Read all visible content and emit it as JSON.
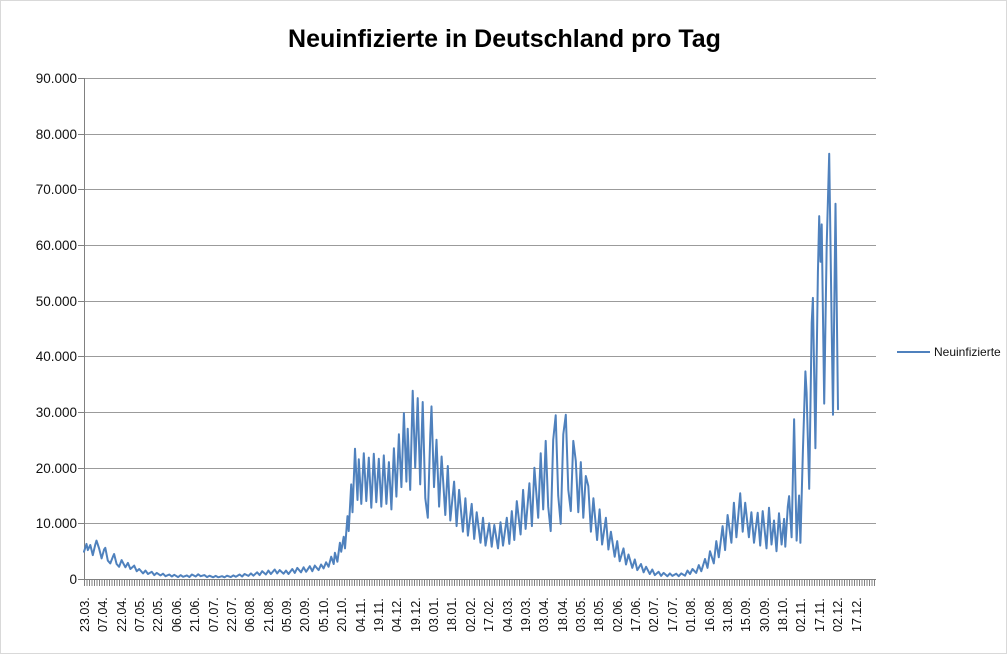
{
  "title": "Neuinfizierte in Deutschland pro Tag",
  "legend": {
    "label": "Neuinfizierte"
  },
  "colors": {
    "series_line": "#4F81BD",
    "gridline": "#9b9b9b",
    "axis_line": "#808080",
    "text": "#111111",
    "background": "#ffffff"
  },
  "chart_data": {
    "type": "line",
    "title": "Neuinfizierte in Deutschland pro Tag",
    "xlabel": "",
    "ylabel": "",
    "ylim": [
      0,
      90000
    ],
    "grid": "horizontal",
    "legend_position": "right",
    "x_unit": "days since 23.03.2020 (category axis)",
    "y_tick_labels": [
      "90.000",
      "80.000",
      "70.000",
      "60.000",
      "50.000",
      "40.000",
      "30.000",
      "20.000",
      "10.000",
      "0"
    ],
    "y_tick_values": [
      90000,
      80000,
      70000,
      60000,
      50000,
      40000,
      30000,
      20000,
      10000,
      0
    ],
    "x_tick_labels": [
      "23.03.",
      "07.04.",
      "22.04.",
      "07.05.",
      "22.05.",
      "06.06.",
      "21.06.",
      "07.07.",
      "22.07.",
      "06.08.",
      "21.08.",
      "05.09.",
      "20.09.",
      "05.10.",
      "20.10.",
      "04.11.",
      "19.11.",
      "04.12.",
      "19.12.",
      "03.01.",
      "18.01.",
      "02.02.",
      "17.02.",
      "04.03.",
      "19.03.",
      "03.04.",
      "18.04.",
      "03.05.",
      "18.05.",
      "02.06.",
      "17.06.",
      "02.07.",
      "17.07.",
      "01.08.",
      "16.08.",
      "31.08.",
      "15.09.",
      "30.09.",
      "18.10.",
      "02.11.",
      "17.11.",
      "02.12.",
      "17.12."
    ],
    "x_tick_step_days": 15,
    "x_domain_days": [
      0,
      646
    ],
    "series": [
      {
        "name": "Neuinfizierte",
        "color": "#4F81BD",
        "points": [
          [
            0,
            4900
          ],
          [
            2,
            6300
          ],
          [
            3,
            5200
          ],
          [
            5,
            6100
          ],
          [
            7,
            4300
          ],
          [
            9,
            6200
          ],
          [
            10,
            6900
          ],
          [
            12,
            5500
          ],
          [
            14,
            3700
          ],
          [
            16,
            5300
          ],
          [
            17,
            5600
          ],
          [
            19,
            3300
          ],
          [
            21,
            2800
          ],
          [
            23,
            4000
          ],
          [
            24,
            4500
          ],
          [
            26,
            2700
          ],
          [
            28,
            2200
          ],
          [
            30,
            3400
          ],
          [
            33,
            2100
          ],
          [
            35,
            2900
          ],
          [
            37,
            1800
          ],
          [
            40,
            2400
          ],
          [
            42,
            1400
          ],
          [
            44,
            1800
          ],
          [
            47,
            1000
          ],
          [
            49,
            1500
          ],
          [
            51,
            900
          ],
          [
            54,
            1300
          ],
          [
            56,
            700
          ],
          [
            58,
            1100
          ],
          [
            61,
            650
          ],
          [
            63,
            950
          ],
          [
            65,
            500
          ],
          [
            68,
            800
          ],
          [
            70,
            450
          ],
          [
            72,
            750
          ],
          [
            75,
            350
          ],
          [
            77,
            700
          ],
          [
            79,
            400
          ],
          [
            82,
            650
          ],
          [
            84,
            350
          ],
          [
            86,
            800
          ],
          [
            89,
            450
          ],
          [
            91,
            850
          ],
          [
            93,
            500
          ],
          [
            96,
            700
          ],
          [
            98,
            350
          ],
          [
            100,
            600
          ],
          [
            103,
            300
          ],
          [
            105,
            550
          ],
          [
            107,
            300
          ],
          [
            110,
            500
          ],
          [
            112,
            300
          ],
          [
            114,
            600
          ],
          [
            117,
            350
          ],
          [
            119,
            650
          ],
          [
            121,
            400
          ],
          [
            124,
            800
          ],
          [
            126,
            450
          ],
          [
            128,
            900
          ],
          [
            131,
            550
          ],
          [
            133,
            1000
          ],
          [
            135,
            600
          ],
          [
            138,
            1200
          ],
          [
            140,
            700
          ],
          [
            142,
            1400
          ],
          [
            145,
            800
          ],
          [
            147,
            1500
          ],
          [
            149,
            900
          ],
          [
            152,
            1700
          ],
          [
            154,
            1000
          ],
          [
            156,
            1600
          ],
          [
            159,
            950
          ],
          [
            161,
            1500
          ],
          [
            163,
            900
          ],
          [
            166,
            1800
          ],
          [
            168,
            1100
          ],
          [
            170,
            2000
          ],
          [
            173,
            1200
          ],
          [
            175,
            2100
          ],
          [
            177,
            1300
          ],
          [
            180,
            2300
          ],
          [
            182,
            1400
          ],
          [
            184,
            2400
          ],
          [
            187,
            1600
          ],
          [
            189,
            2600
          ],
          [
            191,
            1900
          ],
          [
            193,
            3000
          ],
          [
            195,
            2200
          ],
          [
            197,
            4000
          ],
          [
            199,
            2700
          ],
          [
            200,
            4700
          ],
          [
            202,
            3100
          ],
          [
            204,
            6500
          ],
          [
            205,
            4900
          ],
          [
            207,
            7600
          ],
          [
            208,
            5500
          ],
          [
            210,
            11300
          ],
          [
            211,
            8600
          ],
          [
            213,
            17000
          ],
          [
            214,
            12000
          ],
          [
            216,
            23400
          ],
          [
            218,
            14200
          ],
          [
            219,
            21500
          ],
          [
            221,
            13500
          ],
          [
            223,
            22600
          ],
          [
            225,
            14000
          ],
          [
            227,
            21800
          ],
          [
            229,
            12800
          ],
          [
            231,
            22500
          ],
          [
            233,
            13800
          ],
          [
            235,
            21600
          ],
          [
            237,
            13000
          ],
          [
            239,
            22200
          ],
          [
            241,
            13500
          ],
          [
            243,
            21000
          ],
          [
            245,
            12500
          ],
          [
            247,
            23500
          ],
          [
            249,
            14800
          ],
          [
            251,
            26000
          ],
          [
            253,
            16500
          ],
          [
            255,
            29800
          ],
          [
            257,
            17500
          ],
          [
            258,
            27000
          ],
          [
            260,
            16000
          ],
          [
            262,
            33800
          ],
          [
            264,
            20000
          ],
          [
            266,
            32500
          ],
          [
            268,
            17000
          ],
          [
            270,
            31800
          ],
          [
            272,
            14500
          ],
          [
            274,
            11000
          ],
          [
            276,
            26000
          ],
          [
            277,
            31000
          ],
          [
            279,
            16500
          ],
          [
            281,
            25000
          ],
          [
            283,
            13000
          ],
          [
            285,
            22000
          ],
          [
            288,
            11500
          ],
          [
            290,
            20300
          ],
          [
            292,
            10500
          ],
          [
            295,
            17500
          ],
          [
            297,
            9500
          ],
          [
            299,
            16000
          ],
          [
            302,
            8500
          ],
          [
            304,
            14500
          ],
          [
            306,
            7800
          ],
          [
            309,
            13500
          ],
          [
            311,
            7200
          ],
          [
            313,
            12000
          ],
          [
            316,
            6500
          ],
          [
            318,
            11000
          ],
          [
            320,
            6000
          ],
          [
            323,
            10000
          ],
          [
            325,
            5800
          ],
          [
            327,
            9700
          ],
          [
            330,
            5500
          ],
          [
            332,
            10200
          ],
          [
            334,
            6000
          ],
          [
            337,
            11000
          ],
          [
            339,
            6300
          ],
          [
            341,
            12200
          ],
          [
            343,
            7000
          ],
          [
            345,
            14000
          ],
          [
            348,
            8000
          ],
          [
            350,
            16000
          ],
          [
            352,
            9000
          ],
          [
            355,
            17200
          ],
          [
            357,
            9500
          ],
          [
            359,
            20000
          ],
          [
            362,
            11000
          ],
          [
            364,
            22600
          ],
          [
            366,
            12500
          ],
          [
            368,
            24800
          ],
          [
            370,
            13000
          ],
          [
            372,
            8600
          ],
          [
            374,
            25000
          ],
          [
            376,
            29400
          ],
          [
            378,
            15000
          ],
          [
            380,
            9900
          ],
          [
            382,
            26000
          ],
          [
            384,
            29500
          ],
          [
            386,
            16000
          ],
          [
            388,
            12200
          ],
          [
            390,
            24800
          ],
          [
            392,
            21200
          ],
          [
            394,
            12000
          ],
          [
            396,
            21000
          ],
          [
            398,
            11000
          ],
          [
            400,
            18500
          ],
          [
            402,
            16700
          ],
          [
            404,
            8500
          ],
          [
            406,
            14500
          ],
          [
            409,
            7000
          ],
          [
            411,
            12500
          ],
          [
            413,
            6200
          ],
          [
            416,
            11000
          ],
          [
            418,
            5300
          ],
          [
            420,
            8500
          ],
          [
            423,
            4000
          ],
          [
            425,
            6800
          ],
          [
            427,
            3200
          ],
          [
            430,
            5500
          ],
          [
            432,
            2600
          ],
          [
            434,
            4400
          ],
          [
            437,
            2000
          ],
          [
            439,
            3500
          ],
          [
            441,
            1600
          ],
          [
            444,
            2700
          ],
          [
            446,
            1200
          ],
          [
            448,
            2200
          ],
          [
            451,
            900
          ],
          [
            453,
            1700
          ],
          [
            455,
            700
          ],
          [
            458,
            1300
          ],
          [
            460,
            550
          ],
          [
            462,
            1100
          ],
          [
            465,
            500
          ],
          [
            467,
            1000
          ],
          [
            469,
            550
          ],
          [
            472,
            950
          ],
          [
            474,
            500
          ],
          [
            476,
            1000
          ],
          [
            479,
            600
          ],
          [
            481,
            1500
          ],
          [
            483,
            900
          ],
          [
            485,
            1800
          ],
          [
            488,
            1100
          ],
          [
            490,
            2500
          ],
          [
            492,
            1400
          ],
          [
            495,
            3600
          ],
          [
            497,
            2000
          ],
          [
            499,
            5000
          ],
          [
            502,
            2800
          ],
          [
            504,
            6800
          ],
          [
            506,
            3900
          ],
          [
            509,
            9500
          ],
          [
            511,
            5200
          ],
          [
            513,
            11500
          ],
          [
            516,
            6500
          ],
          [
            518,
            13700
          ],
          [
            520,
            7500
          ],
          [
            523,
            15400
          ],
          [
            525,
            8500
          ],
          [
            527,
            13700
          ],
          [
            530,
            7500
          ],
          [
            532,
            12000
          ],
          [
            534,
            6500
          ],
          [
            537,
            11900
          ],
          [
            539,
            6000
          ],
          [
            541,
            12200
          ],
          [
            544,
            5500
          ],
          [
            546,
            12800
          ],
          [
            548,
            6200
          ],
          [
            550,
            10500
          ],
          [
            552,
            5000
          ],
          [
            554,
            11800
          ],
          [
            556,
            6200
          ],
          [
            558,
            10800
          ],
          [
            559,
            5800
          ],
          [
            561,
            13000
          ],
          [
            562,
            14900
          ],
          [
            564,
            7500
          ],
          [
            566,
            28700
          ],
          [
            568,
            6900
          ],
          [
            570,
            15000
          ],
          [
            571,
            6500
          ],
          [
            573,
            23000
          ],
          [
            575,
            37300
          ],
          [
            576,
            33500
          ],
          [
            578,
            16200
          ],
          [
            580,
            46000
          ],
          [
            581,
            50500
          ],
          [
            583,
            23500
          ],
          [
            585,
            55000
          ],
          [
            586,
            65200
          ],
          [
            587,
            57000
          ],
          [
            588,
            63700
          ],
          [
            590,
            31500
          ],
          [
            592,
            60000
          ],
          [
            594,
            76400
          ],
          [
            596,
            45000
          ],
          [
            597,
            29500
          ],
          [
            599,
            67400
          ],
          [
            601,
            30500
          ]
        ]
      }
    ]
  }
}
